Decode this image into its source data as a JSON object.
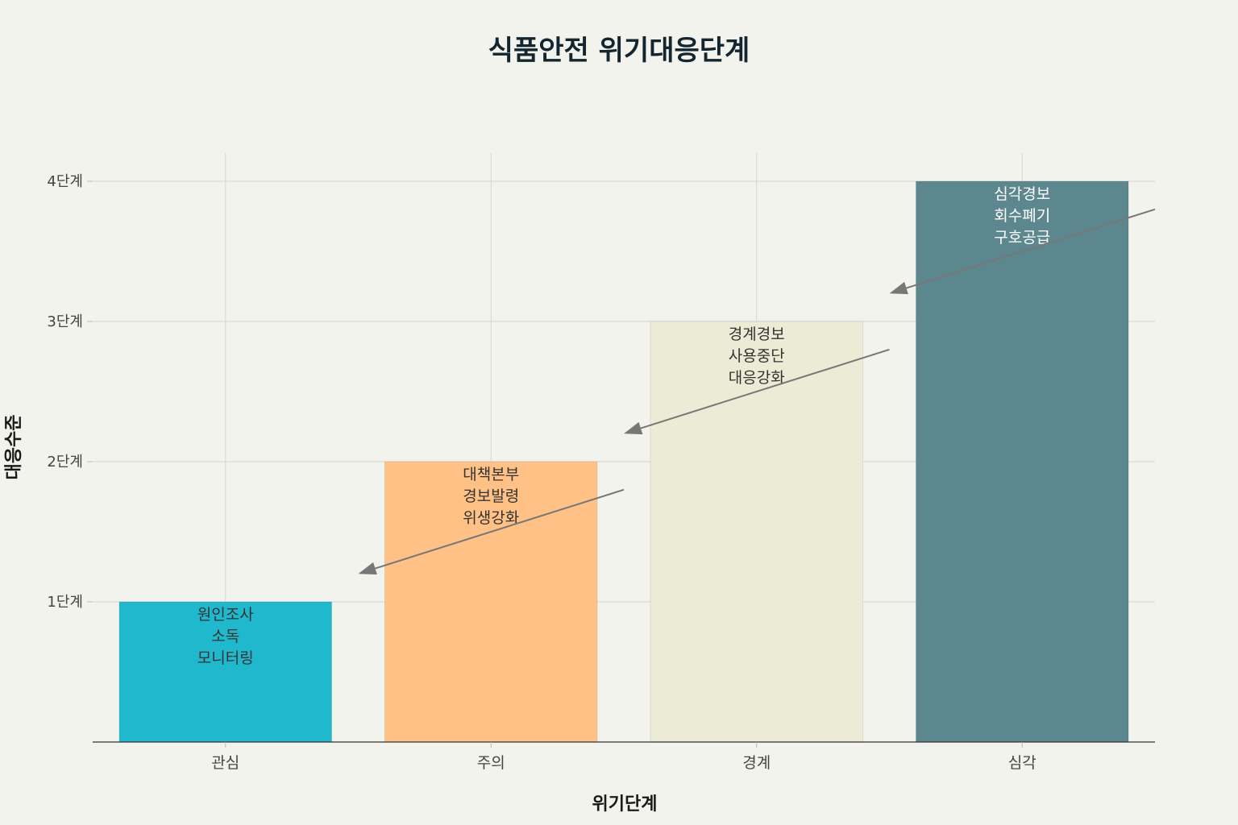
{
  "chart_data": {
    "type": "bar",
    "title": "식품안전 위기대응단계",
    "xlabel": "위기단계",
    "ylabel": "대응수준",
    "categories": [
      "관심",
      "주의",
      "경계",
      "심각"
    ],
    "values": [
      1,
      2,
      3,
      4
    ],
    "ylim": [
      0,
      4.2
    ],
    "y_ticks": [
      {
        "value": 1,
        "label": "1단계"
      },
      {
        "value": 2,
        "label": "2단계"
      },
      {
        "value": 3,
        "label": "3단계"
      },
      {
        "value": 4,
        "label": "4단계"
      }
    ],
    "bar_colors": [
      "#1fb8cd",
      "#ffc185",
      "#ecebd5",
      "#5d878f"
    ],
    "bar_text_colors": [
      "#333333",
      "#333333",
      "#333333",
      "#ffffff"
    ],
    "bar_labels": [
      [
        "원인조사",
        "소독",
        "모니터링"
      ],
      [
        "대책본부",
        "경보발령",
        "위생강화"
      ],
      [
        "경계경보",
        "사용중단",
        "대응강화"
      ],
      [
        "심각경보",
        "회수폐기",
        "구호공급"
      ]
    ],
    "grid": true,
    "arrow_color": "#777777",
    "arrows": [
      {
        "from": [
          1.5,
          1.8
        ],
        "to": [
          0.5,
          1.2
        ]
      },
      {
        "from": [
          2.5,
          2.8
        ],
        "to": [
          1.5,
          2.2
        ]
      },
      {
        "from": [
          3.5,
          3.8
        ],
        "to": [
          2.5,
          3.2
        ]
      }
    ]
  }
}
